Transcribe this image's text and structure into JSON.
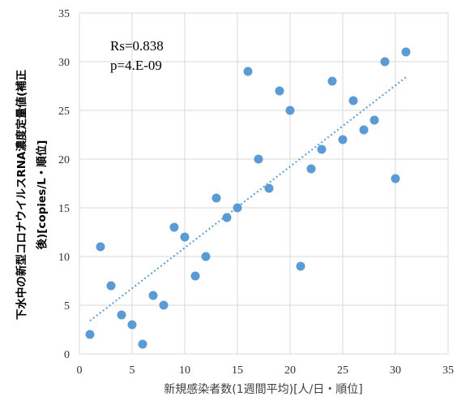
{
  "chart_data": {
    "type": "scatter",
    "title": "",
    "xlabel": "新規感染者数(1週間平均)[人/日・順位]",
    "ylabel_line1": "下水中の新型コロナウイルスRNA濃度定量値(補正",
    "ylabel_line2": "後)[copies/L・順位]",
    "xlim": [
      0,
      35
    ],
    "ylim": [
      0,
      35
    ],
    "xticks": [
      "0",
      "5",
      "10",
      "15",
      "20",
      "25",
      "30",
      "35"
    ],
    "yticks": [
      "0",
      "5",
      "10",
      "15",
      "20",
      "25",
      "30",
      "35"
    ],
    "grid": true,
    "annotations": [
      "Rs=0.838",
      "p=4.E-09"
    ],
    "marker_color": "#5B9BD5",
    "trendline": {
      "style": "dotted",
      "color": "#5B9BD5",
      "x": [
        1,
        31
      ],
      "y": [
        3.4,
        28.4
      ]
    },
    "series": [
      {
        "x": [
          1,
          2,
          3,
          4,
          5,
          6,
          7,
          8,
          9,
          10,
          11,
          12,
          13,
          14,
          15,
          16,
          17,
          18,
          19,
          20,
          21,
          22,
          23,
          24,
          25,
          26,
          27,
          28,
          29,
          30,
          31
        ],
        "y": [
          2,
          11,
          7,
          4,
          3,
          1,
          6,
          5,
          13,
          12,
          8,
          10,
          16,
          14,
          15,
          29,
          20,
          17,
          27,
          25,
          9,
          19,
          21,
          28,
          22,
          26,
          23,
          24,
          30,
          18,
          31
        ]
      }
    ]
  }
}
